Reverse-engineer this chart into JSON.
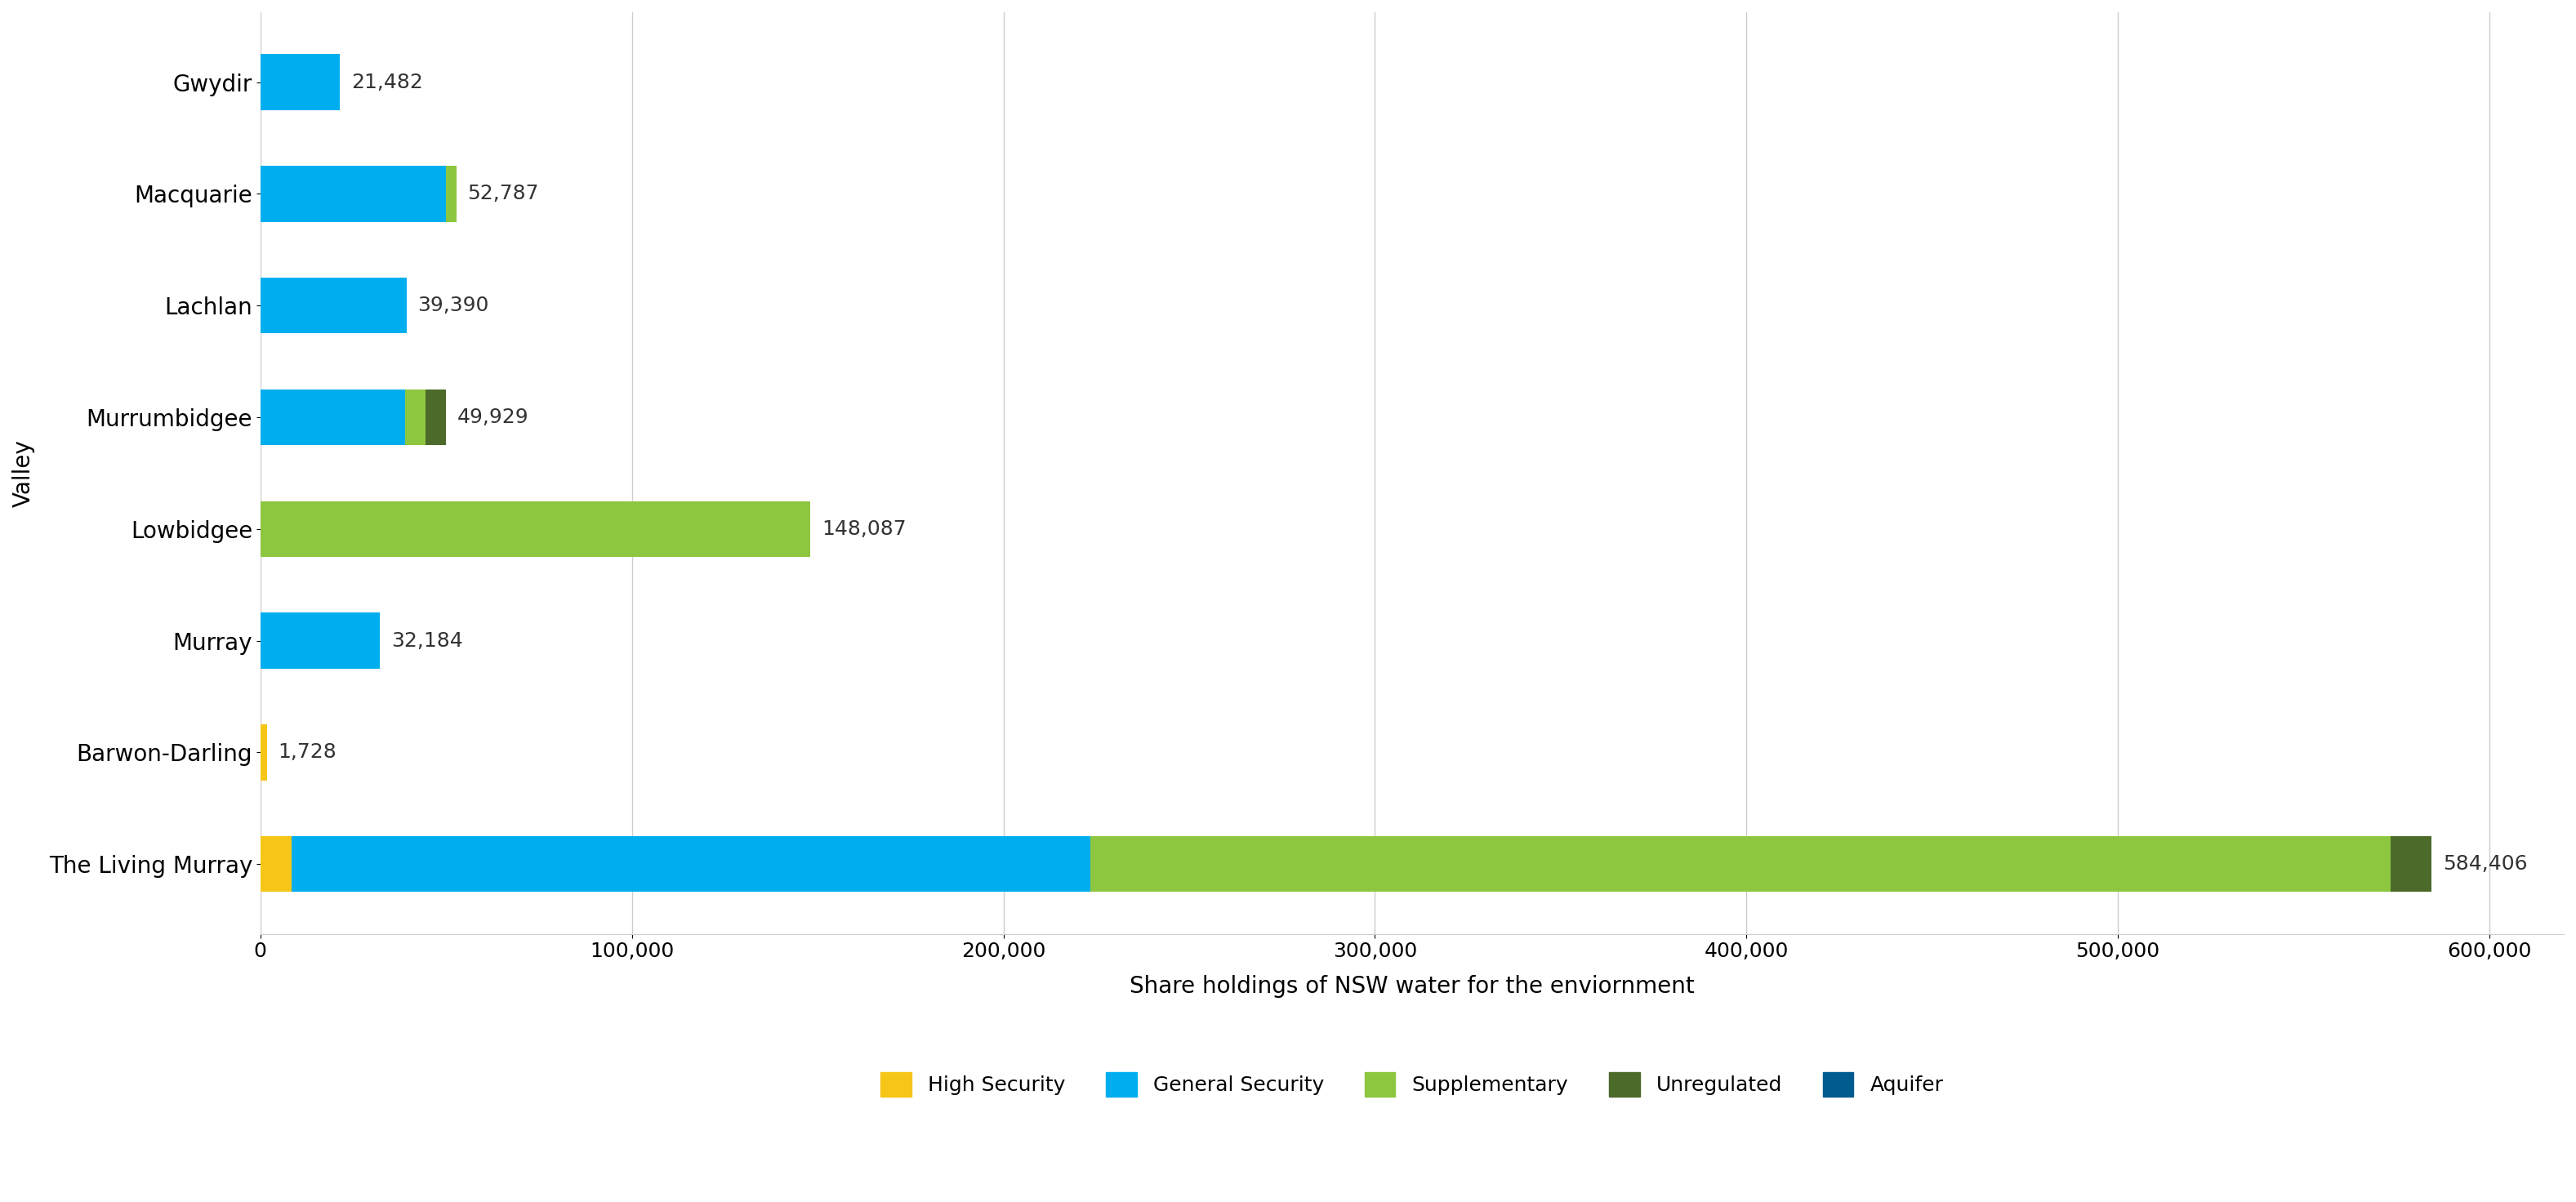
{
  "valleys": [
    "Gwydir",
    "Macquarie",
    "Lachlan",
    "Murrumbidgee",
    "Lowbidgee",
    "Murray",
    "Barwon-Darling",
    "The Living Murray"
  ],
  "total_labels": [
    21482,
    52787,
    39390,
    49929,
    148087,
    32184,
    1728,
    584406
  ],
  "segment_names": [
    "High Security",
    "General Security",
    "Supplementary",
    "Unregulated",
    "Aquifer"
  ],
  "segment_colors": {
    "High Security": "#F5C518",
    "General Security": "#00AEEF",
    "Supplementary": "#8DC63F",
    "Unregulated": "#4C6A2A",
    "Aquifer": "#005B8E"
  },
  "segment_values": {
    "High Security": [
      0,
      0,
      0,
      0,
      0,
      0,
      1728,
      8500
    ],
    "General Security": [
      21482,
      50000,
      39390,
      39000,
      0,
      32184,
      0,
      215000
    ],
    "Supplementary": [
      0,
      2787,
      0,
      5500,
      148087,
      0,
      0,
      350000
    ],
    "Unregulated": [
      0,
      0,
      0,
      5429,
      0,
      0,
      0,
      10906
    ],
    "Aquifer": [
      0,
      0,
      0,
      0,
      0,
      0,
      0,
      0
    ]
  },
  "xlabel": "Share holdings of NSW water for the enviornment",
  "ylabel": "Valley",
  "xlim": [
    0,
    620000
  ],
  "xticks": [
    0,
    100000,
    200000,
    300000,
    400000,
    500000,
    600000
  ],
  "xtick_labels": [
    "0",
    "100,000",
    "200,000",
    "300,000",
    "400,000",
    "500,000",
    "600,000"
  ],
  "bar_height": 0.5,
  "figure_bg": "#FFFFFF",
  "axes_bg": "#FFFFFF",
  "grid_color": "#CCCCCC",
  "label_fontsize": 20,
  "tick_fontsize": 18,
  "legend_fontsize": 18,
  "value_fontsize": 18,
  "axis_label_fontsize": 20
}
